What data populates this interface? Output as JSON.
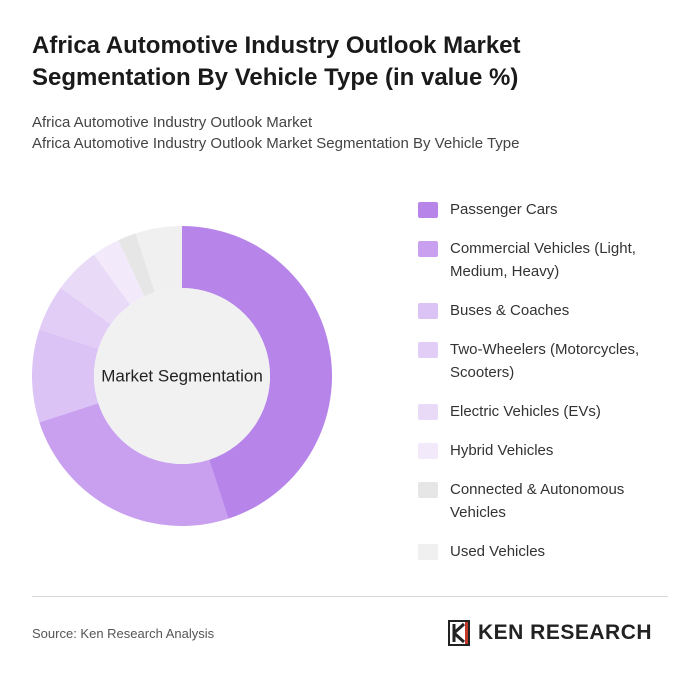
{
  "chart_data": {
    "type": "pie",
    "title": "Africa Automotive Industry Outlook Market Segmentation By Vehicle Type (in value %)",
    "subtitle": [
      "Africa Automotive Industry Outlook Market",
      "Africa Automotive Industry Outlook Market Segmentation By Vehicle Type"
    ],
    "center_label": "Market Segmentation",
    "categories": [
      "Passenger Cars",
      "Commercial Vehicles (Light, Medium, Heavy)",
      "Buses & Coaches",
      "Two-Wheelers (Motorcycles, Scooters)",
      "Electric Vehicles (EVs)",
      "Hybrid Vehicles",
      "Connected & Autonomous Vehicles",
      "Used Vehicles"
    ],
    "values": [
      45,
      25,
      10,
      5,
      5,
      3,
      2,
      5
    ],
    "colors": [
      "#b784ea",
      "#c9a0f0",
      "#dcc3f5",
      "#e2cdf7",
      "#e9dbf8",
      "#f2eafb",
      "#e6e6e6",
      "#f0f0f0"
    ],
    "source": "Source: Ken Research Analysis",
    "brand": "KEN RESEARCH"
  }
}
